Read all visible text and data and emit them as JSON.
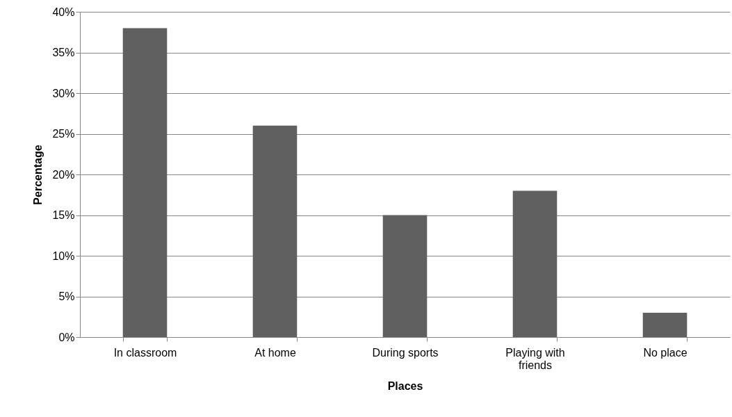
{
  "chart_data": {
    "type": "bar",
    "xlabel": "Places",
    "ylabel": "Percentage",
    "categories": [
      "In classroom",
      "At home",
      "During sports",
      "Playing with friends",
      "No place"
    ],
    "values": [
      38,
      26,
      15,
      18,
      3
    ],
    "color": "#606060",
    "ylim": [
      0,
      40
    ],
    "yticks": [
      {
        "value": 0,
        "label": "0%"
      },
      {
        "value": 5,
        "label": "5%"
      },
      {
        "value": 10,
        "label": "10%"
      },
      {
        "value": 15,
        "label": "15%"
      },
      {
        "value": 20,
        "label": "20%"
      },
      {
        "value": 25,
        "label": "25%"
      },
      {
        "value": 30,
        "label": "30%"
      },
      {
        "value": 35,
        "label": "35%"
      },
      {
        "value": 40,
        "label": "40%"
      }
    ],
    "grid": "y"
  }
}
